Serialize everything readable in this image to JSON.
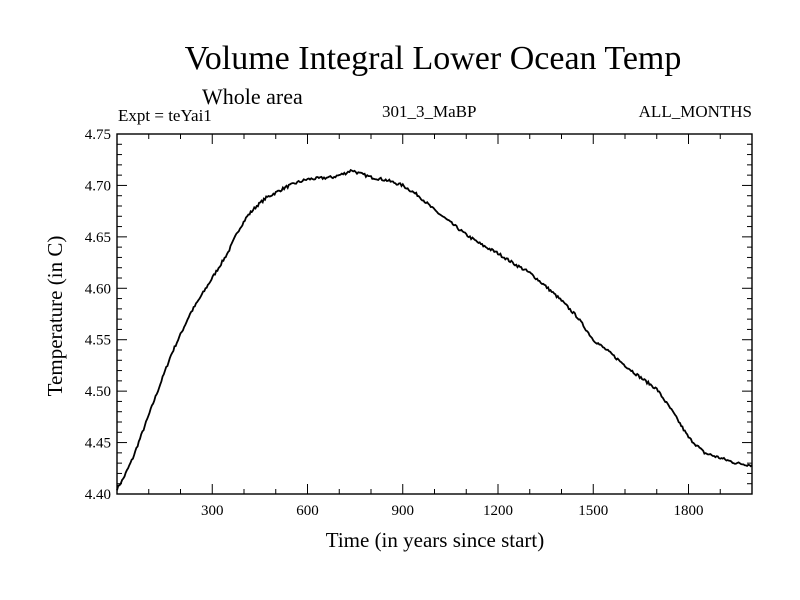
{
  "chart_data": {
    "type": "line",
    "title": "Volume Integral Lower Ocean Temp",
    "subtitle": "Whole area",
    "annotations": {
      "left": "Expt = teYai1",
      "center": "301_3_MaBP",
      "right": "ALL_MONTHS"
    },
    "xlabel": "Time (in years since start)",
    "ylabel": "Temperature (in C)",
    "xlim": [
      0,
      2000
    ],
    "ylim": [
      4.4,
      4.75
    ],
    "x_ticks": [
      300,
      600,
      900,
      1200,
      1500,
      1800
    ],
    "x_tick_labels": [
      "300",
      "600",
      "900",
      "1200",
      "1500",
      "1800"
    ],
    "y_ticks": [
      4.4,
      4.45,
      4.5,
      4.55,
      4.6,
      4.65,
      4.7,
      4.75
    ],
    "y_tick_labels": [
      "4.40",
      "4.45",
      "4.50",
      "4.55",
      "4.60",
      "4.65",
      "4.70",
      "4.75"
    ],
    "grid": false,
    "series": [
      {
        "name": "Temperature",
        "x": [
          0,
          20,
          50,
          80,
          110,
          140,
          170,
          200,
          230,
          260,
          290,
          320,
          350,
          380,
          410,
          440,
          470,
          500,
          530,
          560,
          600,
          640,
          680,
          720,
          740,
          760,
          800,
          850,
          900,
          950,
          1000,
          1050,
          1100,
          1150,
          1200,
          1250,
          1300,
          1350,
          1400,
          1450,
          1500,
          1550,
          1600,
          1650,
          1700,
          1750,
          1800,
          1850,
          1900,
          1950,
          2000
        ],
        "values": [
          4.405,
          4.415,
          4.435,
          4.46,
          4.485,
          4.51,
          4.535,
          4.555,
          4.575,
          4.59,
          4.605,
          4.62,
          4.635,
          4.655,
          4.67,
          4.68,
          4.688,
          4.693,
          4.698,
          4.702,
          4.706,
          4.707,
          4.708,
          4.712,
          4.715,
          4.712,
          4.708,
          4.705,
          4.7,
          4.69,
          4.676,
          4.664,
          4.652,
          4.642,
          4.634,
          4.624,
          4.615,
          4.602,
          4.588,
          4.572,
          4.55,
          4.538,
          4.525,
          4.513,
          4.502,
          4.48,
          4.455,
          4.44,
          4.435,
          4.43,
          4.428
        ]
      }
    ]
  }
}
